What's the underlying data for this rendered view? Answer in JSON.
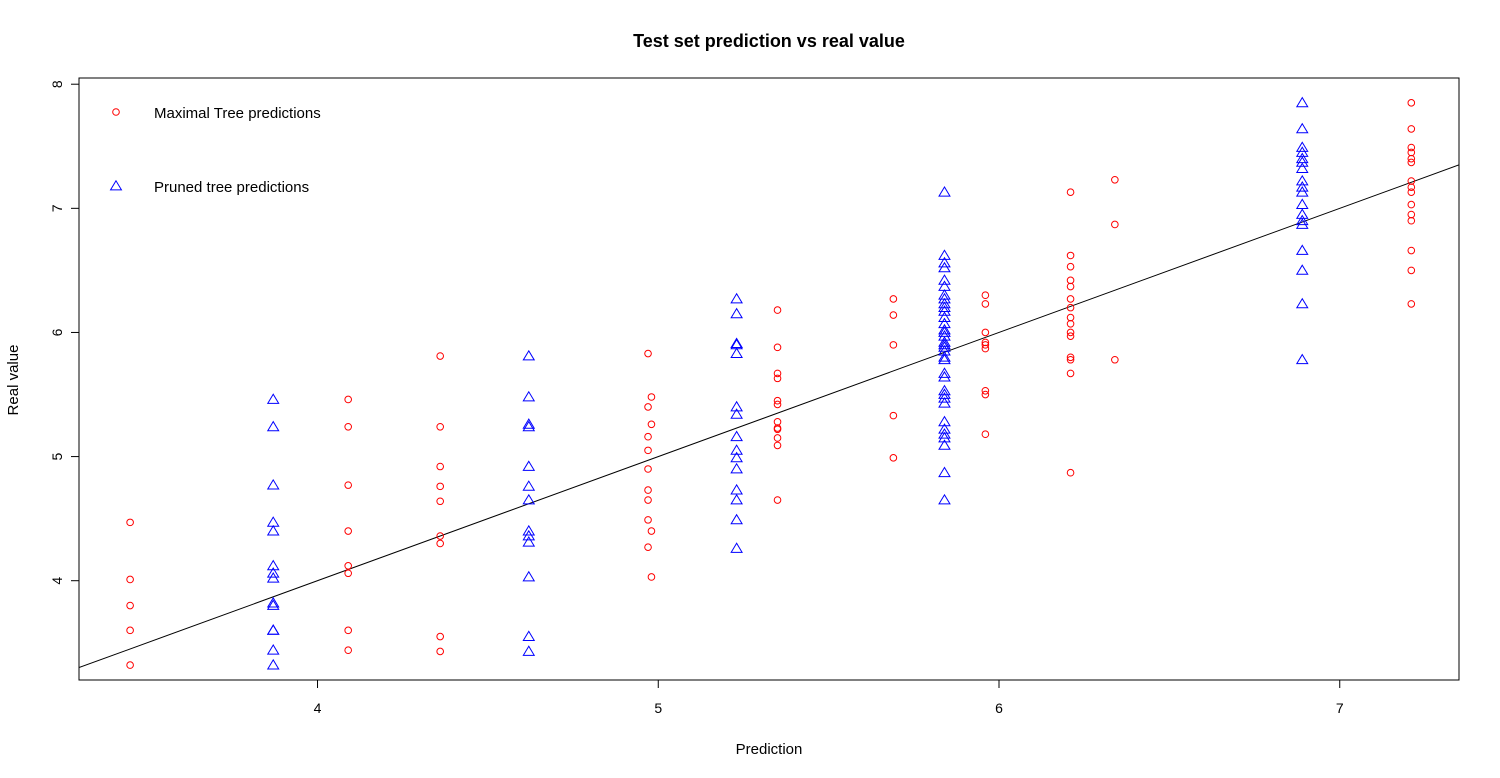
{
  "chart_data": {
    "type": "scatter",
    "title": "Test set prediction vs real value",
    "xlabel": "Prediction",
    "ylabel": "Real value",
    "xlim": [
      3.3,
      7.35
    ],
    "ylim": [
      3.2,
      8.05
    ],
    "xticks": [
      "4",
      "5",
      "6",
      "7"
    ],
    "yticks": [
      "4",
      "5",
      "6",
      "7",
      "8"
    ],
    "grid": false,
    "legend_position": "top-left",
    "reference_line": {
      "slope": 1,
      "intercept": 0,
      "color": "#000000"
    },
    "series": [
      {
        "name": "Maximal Tree predictions",
        "marker": "circle",
        "color": "#ff0000",
        "points": [
          [
            3.45,
            4.47
          ],
          [
            3.45,
            4.01
          ],
          [
            3.45,
            3.8
          ],
          [
            3.45,
            3.6
          ],
          [
            3.45,
            3.32
          ],
          [
            4.09,
            5.46
          ],
          [
            4.09,
            5.24
          ],
          [
            4.09,
            4.77
          ],
          [
            4.09,
            4.4
          ],
          [
            4.09,
            4.12
          ],
          [
            4.09,
            4.06
          ],
          [
            4.09,
            3.6
          ],
          [
            4.09,
            3.44
          ],
          [
            4.36,
            5.81
          ],
          [
            4.36,
            5.24
          ],
          [
            4.36,
            4.92
          ],
          [
            4.36,
            4.76
          ],
          [
            4.36,
            4.64
          ],
          [
            4.36,
            4.36
          ],
          [
            4.36,
            4.3
          ],
          [
            4.36,
            3.55
          ],
          [
            4.36,
            3.43
          ],
          [
            4.97,
            5.83
          ],
          [
            4.98,
            5.48
          ],
          [
            4.97,
            5.4
          ],
          [
            4.98,
            5.26
          ],
          [
            4.97,
            5.16
          ],
          [
            4.97,
            5.05
          ],
          [
            4.97,
            4.9
          ],
          [
            4.97,
            4.73
          ],
          [
            4.97,
            4.65
          ],
          [
            4.97,
            4.49
          ],
          [
            4.98,
            4.4
          ],
          [
            4.97,
            4.27
          ],
          [
            4.98,
            4.03
          ],
          [
            5.35,
            6.18
          ],
          [
            5.35,
            5.88
          ],
          [
            5.35,
            5.67
          ],
          [
            5.35,
            5.63
          ],
          [
            5.35,
            5.45
          ],
          [
            5.35,
            5.42
          ],
          [
            5.35,
            5.28
          ],
          [
            5.35,
            5.23
          ],
          [
            5.35,
            5.22
          ],
          [
            5.35,
            5.15
          ],
          [
            5.35,
            5.09
          ],
          [
            5.35,
            4.65
          ],
          [
            5.69,
            6.27
          ],
          [
            5.69,
            6.14
          ],
          [
            5.69,
            5.9
          ],
          [
            5.69,
            5.33
          ],
          [
            5.69,
            4.99
          ],
          [
            5.96,
            6.3
          ],
          [
            5.96,
            6.23
          ],
          [
            5.96,
            6.0
          ],
          [
            5.96,
            5.92
          ],
          [
            5.96,
            5.9
          ],
          [
            5.96,
            5.87
          ],
          [
            5.96,
            5.53
          ],
          [
            5.96,
            5.5
          ],
          [
            5.96,
            5.18
          ],
          [
            6.21,
            7.13
          ],
          [
            6.21,
            6.62
          ],
          [
            6.21,
            6.53
          ],
          [
            6.21,
            6.42
          ],
          [
            6.21,
            6.37
          ],
          [
            6.21,
            6.27
          ],
          [
            6.21,
            6.2
          ],
          [
            6.21,
            6.12
          ],
          [
            6.21,
            6.07
          ],
          [
            6.21,
            6.0
          ],
          [
            6.21,
            5.97
          ],
          [
            6.21,
            5.8
          ],
          [
            6.21,
            5.78
          ],
          [
            6.21,
            5.67
          ],
          [
            6.21,
            4.87
          ],
          [
            6.34,
            7.23
          ],
          [
            6.34,
            6.87
          ],
          [
            6.34,
            5.78
          ],
          [
            7.21,
            7.85
          ],
          [
            7.21,
            7.64
          ],
          [
            7.21,
            7.49
          ],
          [
            7.21,
            7.45
          ],
          [
            7.21,
            7.4
          ],
          [
            7.21,
            7.37
          ],
          [
            7.21,
            7.22
          ],
          [
            7.21,
            7.17
          ],
          [
            7.21,
            7.13
          ],
          [
            7.21,
            7.03
          ],
          [
            7.21,
            6.95
          ],
          [
            7.21,
            6.9
          ],
          [
            7.21,
            6.66
          ],
          [
            7.21,
            6.5
          ],
          [
            7.21,
            6.23
          ]
        ]
      },
      {
        "name": "Pruned tree predictions",
        "marker": "triangle",
        "color": "#0000ff",
        "points": [
          [
            3.87,
            5.46
          ],
          [
            3.87,
            5.24
          ],
          [
            3.87,
            4.77
          ],
          [
            3.87,
            4.47
          ],
          [
            3.87,
            4.4
          ],
          [
            3.87,
            4.12
          ],
          [
            3.87,
            4.06
          ],
          [
            3.87,
            4.02
          ],
          [
            3.87,
            3.82
          ],
          [
            3.87,
            3.8
          ],
          [
            3.87,
            3.6
          ],
          [
            3.87,
            3.6
          ],
          [
            3.87,
            3.44
          ],
          [
            3.87,
            3.32
          ],
          [
            4.62,
            5.81
          ],
          [
            4.62,
            5.48
          ],
          [
            4.62,
            5.26
          ],
          [
            4.62,
            5.24
          ],
          [
            4.62,
            4.92
          ],
          [
            4.62,
            4.76
          ],
          [
            4.62,
            4.65
          ],
          [
            4.62,
            4.4
          ],
          [
            4.62,
            4.36
          ],
          [
            4.62,
            4.31
          ],
          [
            4.62,
            4.03
          ],
          [
            4.62,
            3.55
          ],
          [
            4.62,
            3.43
          ],
          [
            5.23,
            6.27
          ],
          [
            5.23,
            6.15
          ],
          [
            5.23,
            5.91
          ],
          [
            5.23,
            5.9
          ],
          [
            5.23,
            5.83
          ],
          [
            5.23,
            5.4
          ],
          [
            5.23,
            5.34
          ],
          [
            5.23,
            5.16
          ],
          [
            5.23,
            5.05
          ],
          [
            5.23,
            4.99
          ],
          [
            5.23,
            4.9
          ],
          [
            5.23,
            4.73
          ],
          [
            5.23,
            4.65
          ],
          [
            5.23,
            4.49
          ],
          [
            5.23,
            4.26
          ],
          [
            5.84,
            7.13
          ],
          [
            5.84,
            6.62
          ],
          [
            5.84,
            6.56
          ],
          [
            5.84,
            6.52
          ],
          [
            5.84,
            6.42
          ],
          [
            5.84,
            6.37
          ],
          [
            5.84,
            6.3
          ],
          [
            5.84,
            6.27
          ],
          [
            5.84,
            6.23
          ],
          [
            5.84,
            6.2
          ],
          [
            5.84,
            6.17
          ],
          [
            5.84,
            6.12
          ],
          [
            5.84,
            6.07
          ],
          [
            5.84,
            6.02
          ],
          [
            5.84,
            6.0
          ],
          [
            5.84,
            5.97
          ],
          [
            5.84,
            5.92
          ],
          [
            5.84,
            5.9
          ],
          [
            5.84,
            5.88
          ],
          [
            5.84,
            5.85
          ],
          [
            5.84,
            5.8
          ],
          [
            5.84,
            5.78
          ],
          [
            5.84,
            5.67
          ],
          [
            5.84,
            5.64
          ],
          [
            5.84,
            5.53
          ],
          [
            5.84,
            5.5
          ],
          [
            5.84,
            5.47
          ],
          [
            5.84,
            5.43
          ],
          [
            5.84,
            5.28
          ],
          [
            5.84,
            5.22
          ],
          [
            5.84,
            5.18
          ],
          [
            5.84,
            5.15
          ],
          [
            5.84,
            5.09
          ],
          [
            5.84,
            4.87
          ],
          [
            5.84,
            4.65
          ],
          [
            6.89,
            7.85
          ],
          [
            6.89,
            7.64
          ],
          [
            6.89,
            7.49
          ],
          [
            6.89,
            7.45
          ],
          [
            6.89,
            7.4
          ],
          [
            6.89,
            7.37
          ],
          [
            6.89,
            7.32
          ],
          [
            6.89,
            7.22
          ],
          [
            6.89,
            7.17
          ],
          [
            6.89,
            7.13
          ],
          [
            6.89,
            7.03
          ],
          [
            6.89,
            6.95
          ],
          [
            6.89,
            6.9
          ],
          [
            6.89,
            6.87
          ],
          [
            6.89,
            6.66
          ],
          [
            6.89,
            6.5
          ],
          [
            6.89,
            6.23
          ],
          [
            6.89,
            5.78
          ]
        ]
      }
    ]
  }
}
